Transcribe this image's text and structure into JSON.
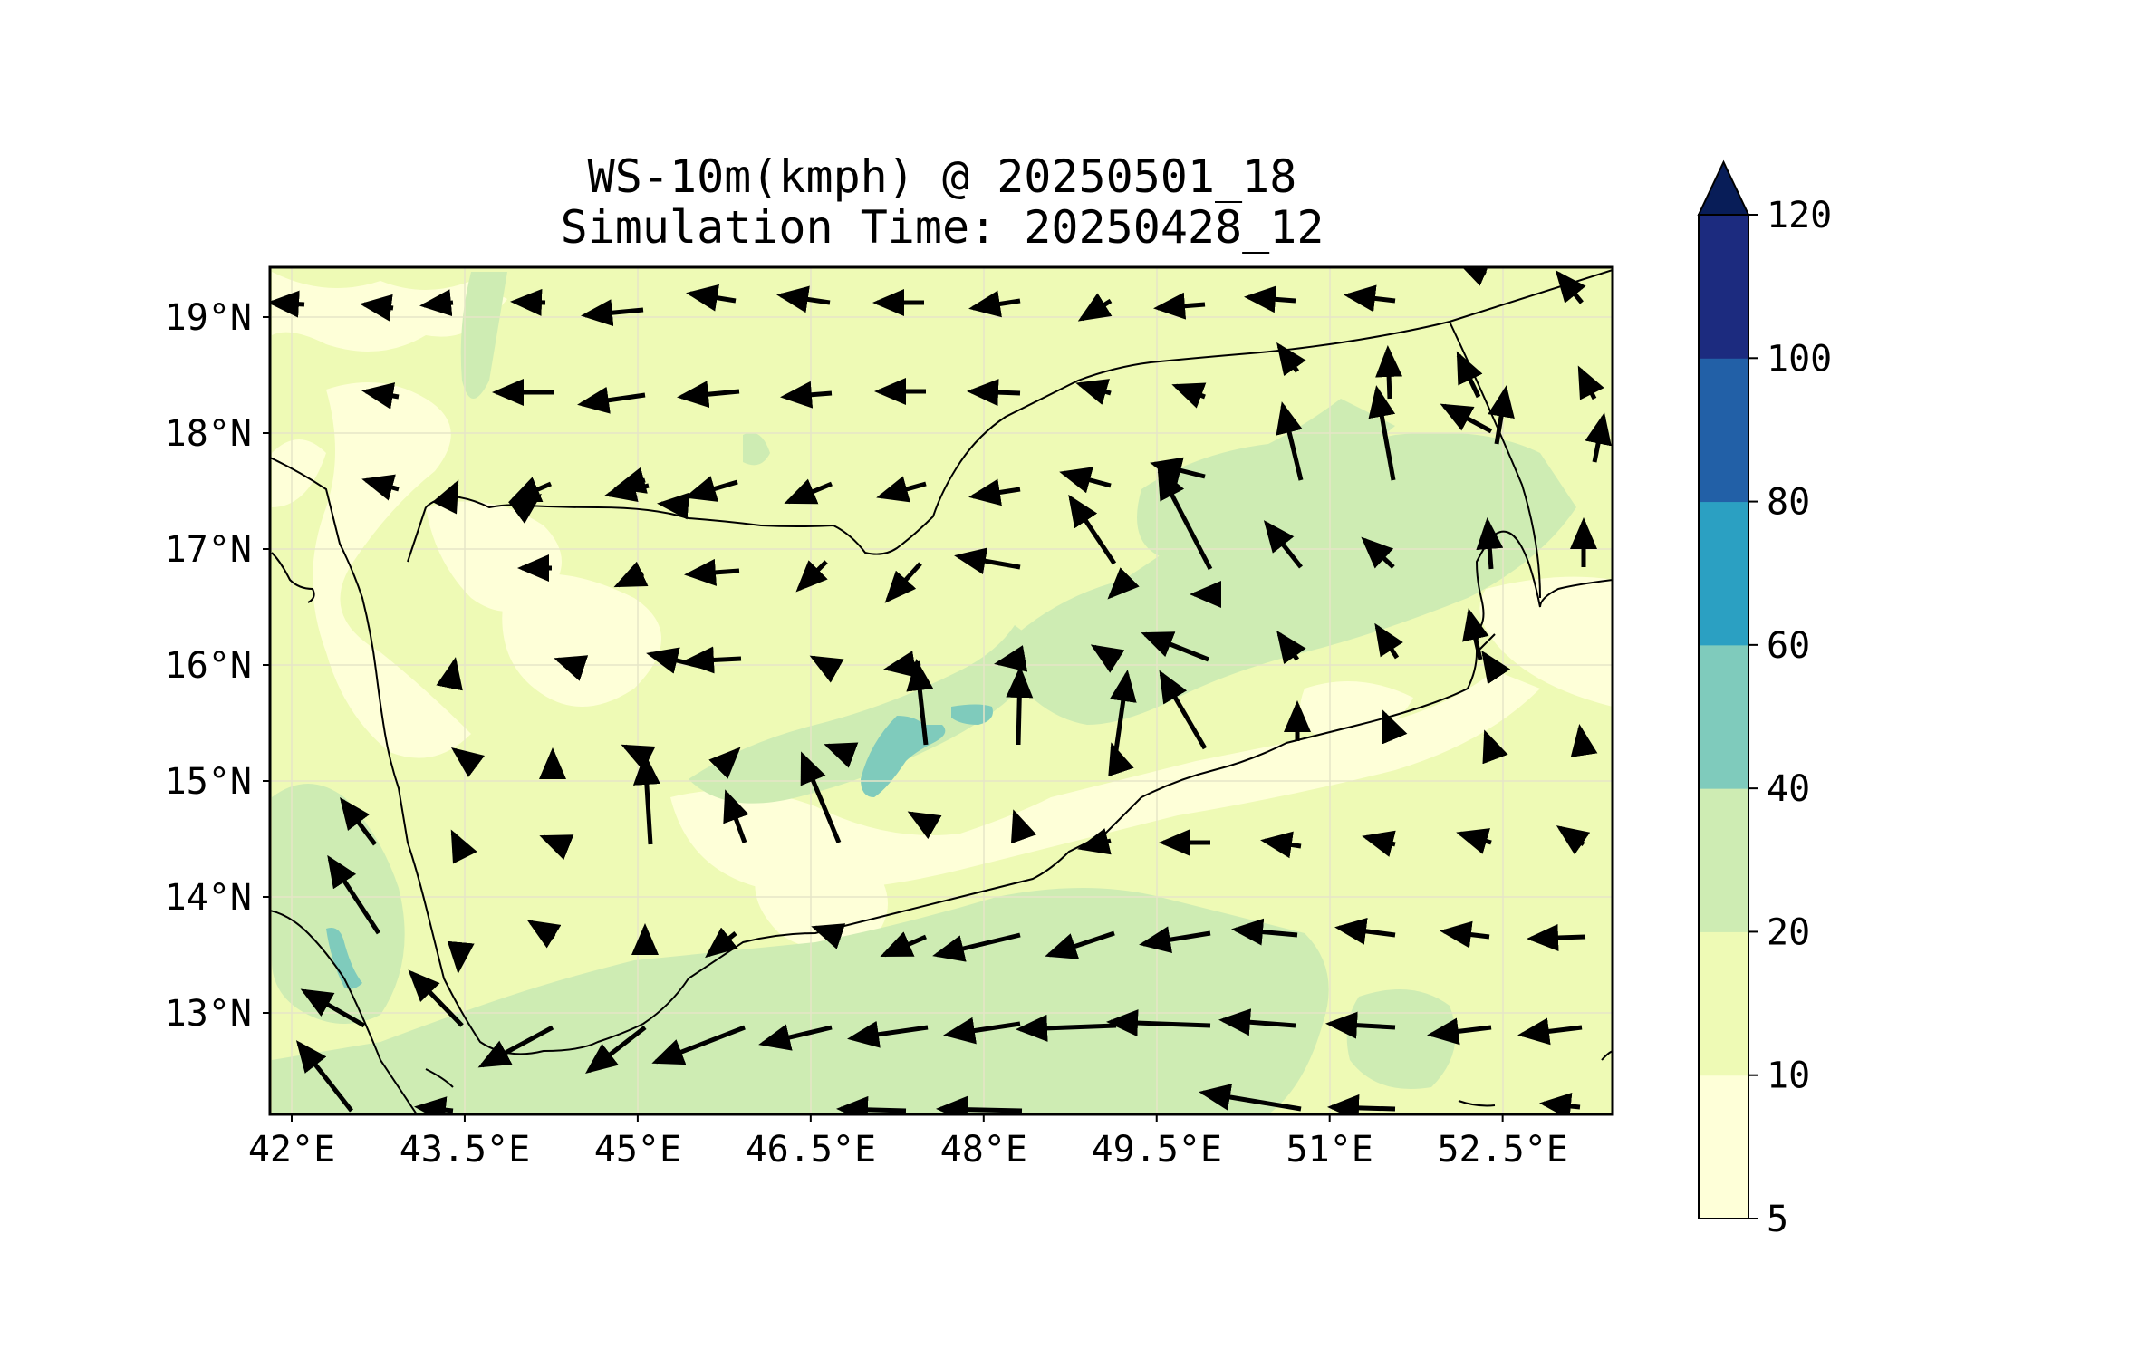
{
  "title": {
    "line1": "WS-10m(kmph) @ 20250501_18",
    "line2": "Simulation Time: 20250428_12"
  },
  "map": {
    "lon_range": [
      42.0,
      53.8
    ],
    "lat_range": [
      12.1,
      19.5
    ],
    "x_ticks": [
      {
        "lon": 42.0,
        "label": "42°E"
      },
      {
        "lon": 43.5,
        "label": "43.5°E"
      },
      {
        "lon": 45.0,
        "label": "45°E"
      },
      {
        "lon": 46.5,
        "label": "46.5°E"
      },
      {
        "lon": 48.0,
        "label": "48°E"
      },
      {
        "lon": 49.5,
        "label": "49.5°E"
      },
      {
        "lon": 51.0,
        "label": "51°E"
      },
      {
        "lon": 52.5,
        "label": "52.5°E"
      }
    ],
    "y_ticks": [
      {
        "lat": 19,
        "label": "19°N"
      },
      {
        "lat": 18,
        "label": "18°N"
      },
      {
        "lat": 17,
        "label": "17°N"
      },
      {
        "lat": 16,
        "label": "16°N"
      },
      {
        "lat": 15,
        "label": "15°N"
      },
      {
        "lat": 14,
        "label": "14°N"
      },
      {
        "lat": 13,
        "label": "13°N"
      }
    ],
    "grid": true
  },
  "colorbar": {
    "levels": [
      5,
      10,
      20,
      40,
      60,
      80,
      100,
      120
    ],
    "labels": [
      "5",
      "10",
      "20",
      "40",
      "60",
      "80",
      "100",
      "120"
    ],
    "colors": [
      "#feffd8",
      "#eefab5",
      "#ceecb3",
      "#7fcbbc",
      "#2ba0c2",
      "#2260a7",
      "#1c2b7f",
      "#081d58"
    ],
    "extend": "max"
  },
  "chart_data": {
    "type": "heatmap",
    "variable": "WS-10m(kmph)",
    "description_of_field": "filled contours of 10 m wind speed with wind vectors",
    "dominant_speed_band_kmph": [
      10,
      20
    ],
    "higher_bands_present": [
      20,
      40
    ],
    "max_band_present": [
      40,
      60
    ]
  }
}
